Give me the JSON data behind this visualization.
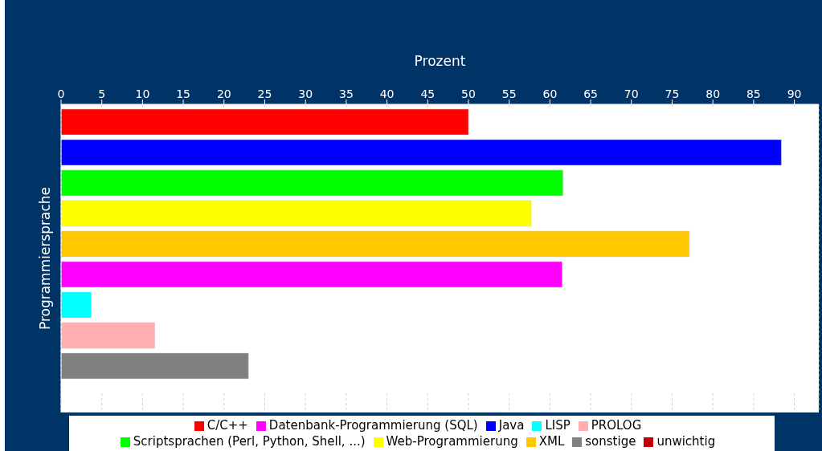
{
  "chart_data": {
    "type": "bar",
    "orientation": "horizontal",
    "xlabel": "Prozent",
    "ylabel": "Programmiersprache",
    "categories": [
      null
    ],
    "xlim": [
      0,
      93
    ],
    "xticks": [
      0,
      5,
      10,
      15,
      20,
      25,
      30,
      35,
      40,
      45,
      50,
      55,
      60,
      65,
      70,
      75,
      80,
      85,
      90
    ],
    "grid": "x",
    "legend": "bottom",
    "series": [
      {
        "name": "C/C++",
        "color": "#ff0000",
        "values": [
          50
        ]
      },
      {
        "name": "Java",
        "color": "#0000ff",
        "values": [
          88.4
        ]
      },
      {
        "name": "Scriptsprachen (Perl, Python, Shell, ...)",
        "color": "#00ff00",
        "values": [
          61.6
        ]
      },
      {
        "name": "Web-Programmierung",
        "color": "#ffff00",
        "values": [
          57.7
        ]
      },
      {
        "name": "XML",
        "color": "#ffc800",
        "values": [
          77.1
        ]
      },
      {
        "name": "Datenbank-Programmierung (SQL)",
        "color": "#ff00ff",
        "values": [
          61.5
        ]
      },
      {
        "name": "LISP",
        "color": "#00ffff",
        "values": [
          3.7
        ]
      },
      {
        "name": "PROLOG",
        "color": "#ffafaf",
        "values": [
          11.5
        ]
      },
      {
        "name": "sonstige",
        "color": "#808080",
        "values": [
          23
        ]
      },
      {
        "name": "unwichtig",
        "color": "#c00000",
        "values": [
          null
        ]
      }
    ]
  }
}
